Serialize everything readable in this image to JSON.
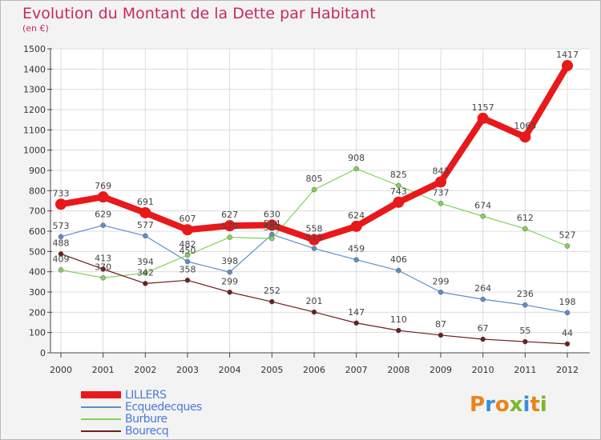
{
  "title": "Evolution du Montant de la Dette par Habitant",
  "unit_label": "(en €)",
  "logo": {
    "letters": [
      "P",
      "r",
      "o",
      "x",
      "i",
      "t",
      "i"
    ],
    "colors": [
      "#e8841a",
      "#3a8fd8",
      "#e8841a",
      "#7ab82a",
      "#3a8fd8",
      "#e8841a",
      "#7ab82a"
    ]
  },
  "chart_data": {
    "type": "line",
    "title": "Evolution du Montant de la Dette par Habitant",
    "ylabel": "(en €)",
    "xlabel": "",
    "x": [
      "2000",
      "2001",
      "2002",
      "2003",
      "2004",
      "2005",
      "2006",
      "2007",
      "2008",
      "2009",
      "2010",
      "2011",
      "2012"
    ],
    "ylim": [
      0,
      1500
    ],
    "yticks": [
      0,
      100,
      200,
      300,
      400,
      500,
      600,
      700,
      800,
      900,
      1000,
      1100,
      1200,
      1300,
      1400,
      1500
    ],
    "grid": true,
    "legend_position": "bottom-left",
    "series": [
      {
        "name": "Ecquedecques",
        "color": "#5b8fc7",
        "values": [
          573,
          629,
          577,
          450,
          398,
          584,
          515,
          459,
          406,
          299,
          264,
          236,
          198
        ]
      },
      {
        "name": "Burbure",
        "color": "#86d15a",
        "values": [
          409,
          370,
          394,
          482,
          570,
          564,
          805,
          908,
          825,
          737,
          674,
          612,
          527
        ]
      },
      {
        "name": "Bourecq",
        "color": "#6b1f1f",
        "values": [
          488,
          413,
          342,
          358,
          299,
          252,
          201,
          147,
          110,
          87,
          67,
          55,
          44
        ]
      },
      {
        "name": "LILLERS",
        "color": "#e8191b",
        "values": [
          733,
          769,
          691,
          607,
          627,
          630,
          558,
          624,
          743,
          843,
          1157,
          1065,
          1417
        ]
      }
    ],
    "data_labels": [
      {
        "series": "Ecquedecques",
        "labels": [
          "573",
          "629",
          "577",
          "450",
          "398",
          "584",
          "515",
          "459",
          "406",
          "299",
          "264",
          "236",
          "198"
        ]
      },
      {
        "series": "Burbure",
        "labels": [
          "409",
          "370",
          "394",
          "482",
          "570",
          "564",
          "805",
          "908",
          "825",
          "737",
          "674",
          "612",
          "527"
        ]
      },
      {
        "series": "Bourecq",
        "labels": [
          "488",
          "413",
          "342",
          "358",
          "299",
          "252",
          "201",
          "147",
          "110",
          "87",
          "67",
          "55",
          "44"
        ]
      },
      {
        "series": "LILLERS",
        "labels": [
          "733",
          "769",
          "691",
          "607",
          "627",
          "630",
          "558",
          "624",
          "743",
          "843",
          "1157",
          "1065",
          "1417"
        ]
      }
    ]
  },
  "legend": [
    {
      "label": "LILLERS",
      "color": "#e8191b"
    },
    {
      "label": "Ecquedecques",
      "color": "#5b8fc7"
    },
    {
      "label": "Burbure",
      "color": "#86d15a"
    },
    {
      "label": "Bourecq",
      "color": "#6b1f1f"
    }
  ]
}
